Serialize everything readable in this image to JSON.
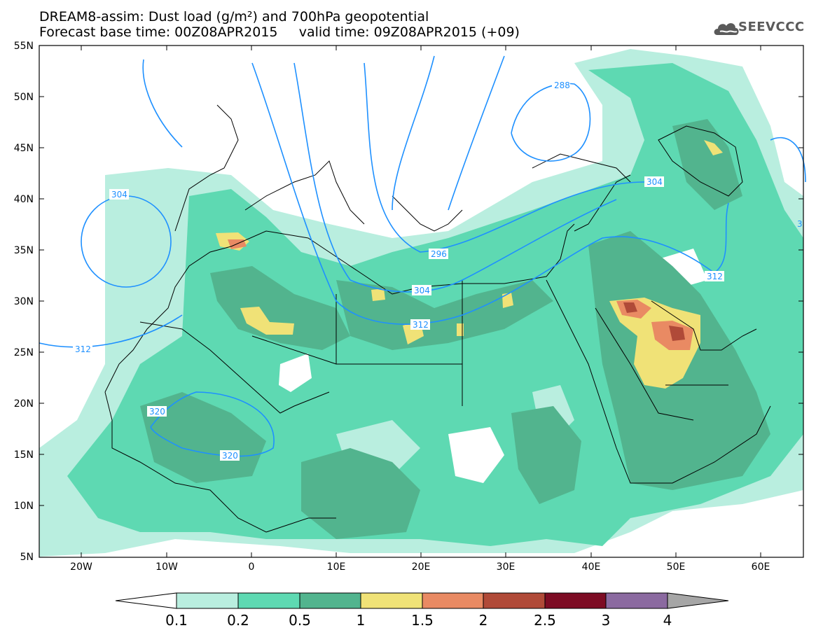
{
  "title": {
    "line1": "DREAM8-assim: Dust load (g/m²) and 700hPa geopotential",
    "line2": "Forecast base time: 00Z08APR2015     valid time: 09Z08APR2015 (+09)"
  },
  "logo": {
    "text": "SEEVCCC",
    "icon": "cloud-logo-icon"
  },
  "axes": {
    "lat_labels": [
      "55N",
      "50N",
      "45N",
      "40N",
      "35N",
      "30N",
      "25N",
      "20N",
      "15N",
      "10N",
      "5N"
    ],
    "lon_labels": [
      "20W",
      "10W",
      "0",
      "10E",
      "20E",
      "30E",
      "40E",
      "50E",
      "60E"
    ]
  },
  "contour_labels": [
    "288",
    "304",
    "304",
    "296",
    "304",
    "312",
    "312",
    "312",
    "320",
    "320",
    "3"
  ],
  "legend": {
    "labels": [
      "0.1",
      "0.2",
      "0.5",
      "1",
      "1.5",
      "2",
      "2.5",
      "3",
      "4"
    ],
    "colors": [
      "#ffffff",
      "#b9eedf",
      "#5ed9b2",
      "#52b48e",
      "#f0e277",
      "#e98a63",
      "#b04a38",
      "#7d0c24",
      "#8b6aa0",
      "#a6a6a6"
    ]
  },
  "colors": {
    "very_light": "#b9eedf",
    "light": "#5ed9b2",
    "medium": "#52b48e",
    "yellow": "#f0e277",
    "orange": "#e98a63",
    "brown": "#b04a38",
    "contour": "#1e90ff",
    "coast": "#000000"
  }
}
